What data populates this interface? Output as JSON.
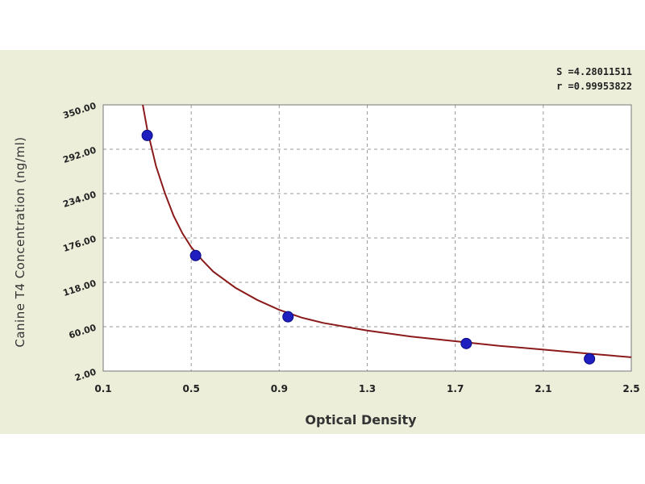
{
  "stats": {
    "s_text": "S =4.28011511",
    "r_text": "r =0.99953822"
  },
  "chart_data": {
    "type": "scatter",
    "title": "",
    "xlabel": "Optical Density",
    "ylabel": "Canine T4 Concentration (ng/ml)",
    "xlim": [
      0.1,
      2.5
    ],
    "ylim": [
      2.0,
      350.0
    ],
    "x_ticks": [
      "0.1",
      "0.5",
      "0.9",
      "1.3",
      "1.7",
      "2.1",
      "2.5"
    ],
    "x_tick_values": [
      0.1,
      0.5,
      0.9,
      1.3,
      1.7,
      2.1,
      2.5
    ],
    "y_ticks": [
      "2.00",
      "60.00",
      "118.00",
      "176.00",
      "234.00",
      "292.00",
      "350.00"
    ],
    "y_tick_values": [
      2.0,
      60.0,
      118.0,
      176.0,
      234.0,
      292.0,
      350.0
    ],
    "grid": true,
    "series": [
      {
        "points": [
          {
            "x": 0.3,
            "y": 310.0
          },
          {
            "x": 0.52,
            "y": 153.0
          },
          {
            "x": 0.94,
            "y": 73.0
          },
          {
            "x": 1.75,
            "y": 38.0
          },
          {
            "x": 2.31,
            "y": 18.0
          }
        ]
      }
    ],
    "fit_curve": {
      "points": [
        {
          "x": 0.28,
          "y": 350.0
        },
        {
          "x": 0.3,
          "y": 318.0
        },
        {
          "x": 0.34,
          "y": 270.0
        },
        {
          "x": 0.38,
          "y": 235.0
        },
        {
          "x": 0.42,
          "y": 205.0
        },
        {
          "x": 0.46,
          "y": 182.0
        },
        {
          "x": 0.5,
          "y": 164.0
        },
        {
          "x": 0.55,
          "y": 147.0
        },
        {
          "x": 0.6,
          "y": 132.0
        },
        {
          "x": 0.7,
          "y": 111.0
        },
        {
          "x": 0.8,
          "y": 95.0
        },
        {
          "x": 0.9,
          "y": 82.0
        },
        {
          "x": 1.0,
          "y": 72.0
        },
        {
          "x": 1.1,
          "y": 65.0
        },
        {
          "x": 1.3,
          "y": 55.0
        },
        {
          "x": 1.5,
          "y": 47.0
        },
        {
          "x": 1.7,
          "y": 41.0
        },
        {
          "x": 1.9,
          "y": 35.0
        },
        {
          "x": 2.1,
          "y": 30.0
        },
        {
          "x": 2.3,
          "y": 25.0
        },
        {
          "x": 2.5,
          "y": 20.0
        }
      ]
    },
    "colors": {
      "panel_bg": "#eceeda",
      "plot_bg": "#ffffff",
      "curve": "#8b1a1a",
      "points": "#1f1fbf",
      "grid": "#9a9a9a",
      "text": "#222222"
    }
  }
}
